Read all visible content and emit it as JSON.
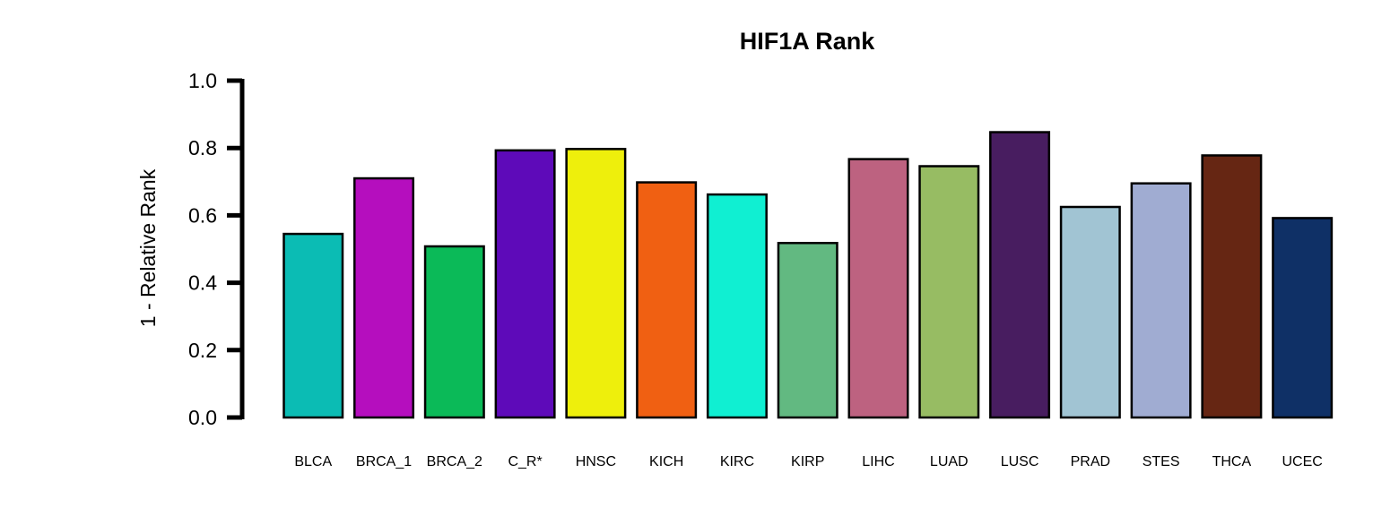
{
  "chart_data": {
    "type": "bar",
    "title": "HIF1A Rank",
    "xlabel": "",
    "ylabel": "1 - Relative Rank",
    "ylim": [
      0,
      1.0
    ],
    "yticks": [
      "0.0",
      "0.2",
      "0.4",
      "0.6",
      "0.8",
      "1.0"
    ],
    "grid": false,
    "legend": "none",
    "categories": [
      "BLCA",
      "BRCA_1",
      "BRCA_2",
      "C_R*",
      "HNSC",
      "KICH",
      "KIRC",
      "KIRP",
      "LIHC",
      "LUAD",
      "LUSC",
      "PRAD",
      "STES",
      "THCA",
      "UCEC"
    ],
    "values": [
      0.545,
      0.71,
      0.508,
      0.793,
      0.797,
      0.698,
      0.662,
      0.518,
      0.767,
      0.746,
      0.847,
      0.625,
      0.695,
      0.778,
      0.592
    ],
    "colors": [
      "#0bbcb4",
      "#b50ebe",
      "#0bba58",
      "#5e0ab9",
      "#eeef0c",
      "#f06012",
      "#10efd2",
      "#62b981",
      "#bd6280",
      "#97bc63",
      "#481d60",
      "#a1c4d3",
      "#a0acd2",
      "#662613",
      "#0f3066"
    ]
  }
}
